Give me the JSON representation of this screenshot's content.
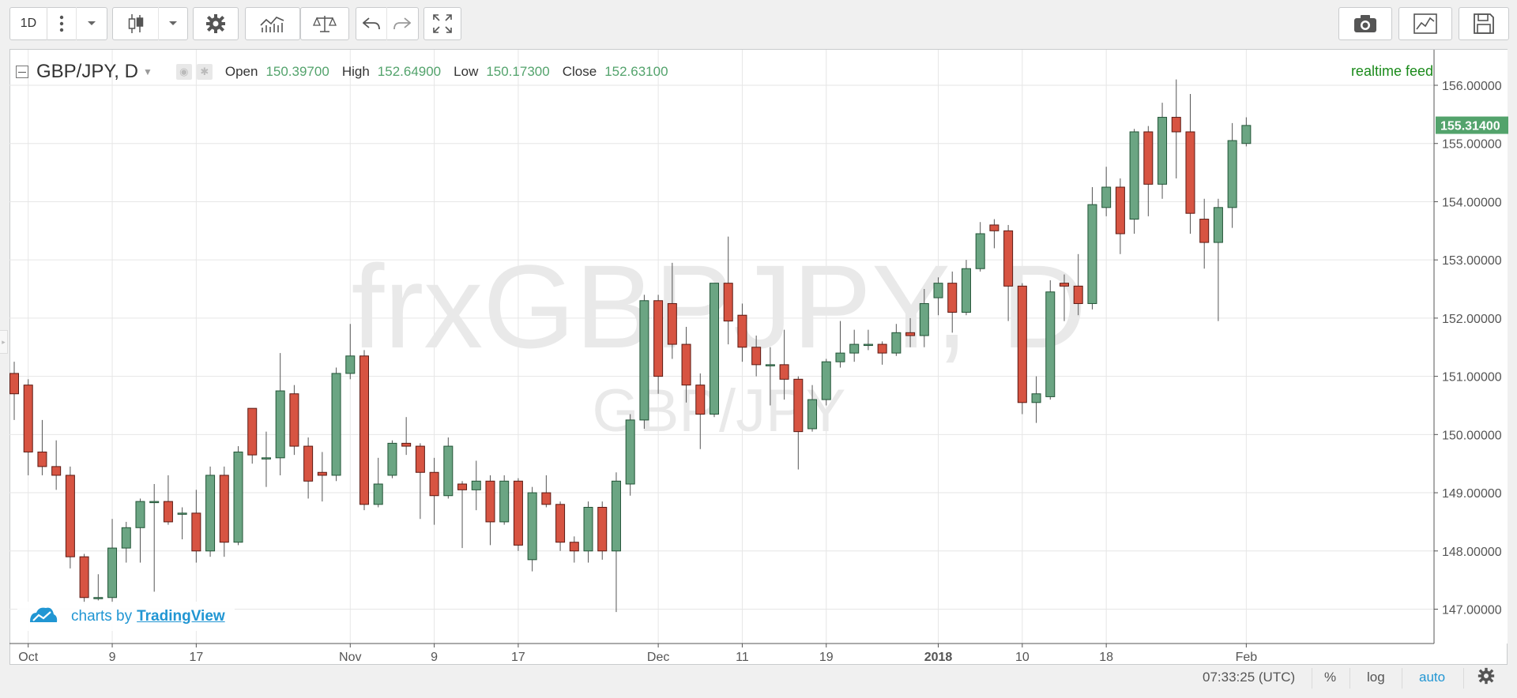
{
  "toolbar": {
    "interval": "1D",
    "icons": [
      "more-vertical-icon",
      "chevron-down-icon",
      "candlestick-icon",
      "chevron-down-icon",
      "gear-icon",
      "indicators-icon",
      "compare-icon",
      "undo-icon",
      "redo-icon",
      "fullscreen-icon",
      "camera-icon",
      "chart-type-icon",
      "save-icon"
    ]
  },
  "legend": {
    "symbol": "GBP/JPY, D",
    "open_label": "Open",
    "open_value": "150.39700",
    "high_label": "High",
    "high_value": "152.64900",
    "low_label": "Low",
    "low_value": "150.17300",
    "close_label": "Close",
    "close_value": "152.63100"
  },
  "realtime_label": "realtime feed",
  "watermark": {
    "main": "frxGBPJPY, D",
    "sub": "GBP/JPY"
  },
  "branding": {
    "prefix": "charts by",
    "name": "TradingView"
  },
  "status": {
    "time": "07:33:25 (UTC)",
    "percent": "%",
    "log": "log",
    "auto": "auto"
  },
  "colors": {
    "up": "#6ba583",
    "down": "#d75442",
    "up_border": "#225437",
    "down_border": "#5b1a13",
    "accent": "#53a36c",
    "link": "#2196d3"
  },
  "chart_data": {
    "type": "candlestick",
    "title": "GBP/JPY, D",
    "ylim": [
      146.6,
      156.4
    ],
    "yticks": [
      "147.00000",
      "148.00000",
      "149.00000",
      "150.00000",
      "151.00000",
      "152.00000",
      "153.00000",
      "154.00000",
      "155.00000",
      "156.00000"
    ],
    "last_price": "155.31400",
    "xticks": [
      {
        "label": "Oct",
        "index": 1,
        "bold": false
      },
      {
        "label": "9",
        "index": 7,
        "bold": false
      },
      {
        "label": "17",
        "index": 13,
        "bold": false
      },
      {
        "label": "Nov",
        "index": 24,
        "bold": false
      },
      {
        "label": "9",
        "index": 30,
        "bold": false
      },
      {
        "label": "17",
        "index": 36,
        "bold": false
      },
      {
        "label": "Dec",
        "index": 46,
        "bold": false
      },
      {
        "label": "11",
        "index": 52,
        "bold": false
      },
      {
        "label": "19",
        "index": 58,
        "bold": false
      },
      {
        "label": "2018",
        "index": 66,
        "bold": true
      },
      {
        "label": "10",
        "index": 72,
        "bold": false
      },
      {
        "label": "18",
        "index": 78,
        "bold": false
      },
      {
        "label": "Feb",
        "index": 88,
        "bold": false
      }
    ],
    "candles": [
      {
        "o": 151.05,
        "h": 151.25,
        "l": 150.25,
        "c": 150.7
      },
      {
        "o": 150.85,
        "h": 150.95,
        "l": 149.3,
        "c": 149.7
      },
      {
        "o": 149.7,
        "h": 150.25,
        "l": 149.3,
        "c": 149.45
      },
      {
        "o": 149.45,
        "h": 149.9,
        "l": 149.05,
        "c": 149.3
      },
      {
        "o": 149.3,
        "h": 149.45,
        "l": 147.7,
        "c": 147.9
      },
      {
        "o": 147.9,
        "h": 147.95,
        "l": 147.1,
        "c": 147.2
      },
      {
        "o": 147.2,
        "h": 147.6,
        "l": 147.15,
        "c": 147.2
      },
      {
        "o": 147.2,
        "h": 148.55,
        "l": 147.1,
        "c": 148.05
      },
      {
        "o": 148.05,
        "h": 148.5,
        "l": 147.8,
        "c": 148.4
      },
      {
        "o": 148.4,
        "h": 148.9,
        "l": 147.8,
        "c": 148.85
      },
      {
        "o": 148.85,
        "h": 149.15,
        "l": 147.3,
        "c": 148.85
      },
      {
        "o": 148.85,
        "h": 149.3,
        "l": 148.45,
        "c": 148.5
      },
      {
        "o": 148.65,
        "h": 148.75,
        "l": 148.2,
        "c": 148.65
      },
      {
        "o": 148.65,
        "h": 149.05,
        "l": 147.8,
        "c": 148.0
      },
      {
        "o": 148.0,
        "h": 149.45,
        "l": 147.9,
        "c": 149.3
      },
      {
        "o": 149.3,
        "h": 149.45,
        "l": 147.9,
        "c": 148.15
      },
      {
        "o": 148.15,
        "h": 149.8,
        "l": 148.1,
        "c": 149.7
      },
      {
        "o": 150.45,
        "h": 150.45,
        "l": 149.5,
        "c": 149.65
      },
      {
        "o": 149.6,
        "h": 150.05,
        "l": 149.1,
        "c": 149.6
      },
      {
        "o": 149.6,
        "h": 151.4,
        "l": 149.3,
        "c": 150.75
      },
      {
        "o": 150.7,
        "h": 150.85,
        "l": 149.65,
        "c": 149.8
      },
      {
        "o": 149.8,
        "h": 149.95,
        "l": 148.9,
        "c": 149.2
      },
      {
        "o": 149.35,
        "h": 149.7,
        "l": 148.85,
        "c": 149.3
      },
      {
        "o": 149.3,
        "h": 151.15,
        "l": 149.2,
        "c": 151.05
      },
      {
        "o": 151.05,
        "h": 151.9,
        "l": 150.95,
        "c": 151.35
      },
      {
        "o": 151.35,
        "h": 151.45,
        "l": 148.7,
        "c": 148.8
      },
      {
        "o": 148.8,
        "h": 149.6,
        "l": 148.75,
        "c": 149.15
      },
      {
        "o": 149.3,
        "h": 149.9,
        "l": 149.25,
        "c": 149.85
      },
      {
        "o": 149.85,
        "h": 150.3,
        "l": 149.65,
        "c": 149.8
      },
      {
        "o": 149.8,
        "h": 149.85,
        "l": 148.55,
        "c": 149.35
      },
      {
        "o": 149.35,
        "h": 149.6,
        "l": 148.45,
        "c": 148.95
      },
      {
        "o": 148.95,
        "h": 149.95,
        "l": 148.9,
        "c": 149.8
      },
      {
        "o": 149.15,
        "h": 149.2,
        "l": 148.05,
        "c": 149.05
      },
      {
        "o": 149.05,
        "h": 149.55,
        "l": 148.7,
        "c": 149.2
      },
      {
        "o": 149.2,
        "h": 149.3,
        "l": 148.1,
        "c": 148.5
      },
      {
        "o": 148.5,
        "h": 149.3,
        "l": 148.45,
        "c": 149.2
      },
      {
        "o": 149.2,
        "h": 149.25,
        "l": 148.0,
        "c": 148.1
      },
      {
        "o": 147.85,
        "h": 149.1,
        "l": 147.65,
        "c": 149.0
      },
      {
        "o": 149.0,
        "h": 149.3,
        "l": 148.75,
        "c": 148.8
      },
      {
        "o": 148.8,
        "h": 148.85,
        "l": 148.0,
        "c": 148.15
      },
      {
        "o": 148.15,
        "h": 148.25,
        "l": 147.8,
        "c": 148.0
      },
      {
        "o": 148.0,
        "h": 148.85,
        "l": 147.8,
        "c": 148.75
      },
      {
        "o": 148.75,
        "h": 148.85,
        "l": 147.85,
        "c": 148.0
      },
      {
        "o": 148.0,
        "h": 149.35,
        "l": 146.95,
        "c": 149.2
      },
      {
        "o": 149.15,
        "h": 150.35,
        "l": 148.95,
        "c": 150.25
      },
      {
        "o": 150.25,
        "h": 152.4,
        "l": 150.1,
        "c": 152.3
      },
      {
        "o": 152.3,
        "h": 152.4,
        "l": 150.7,
        "c": 151.0
      },
      {
        "o": 152.25,
        "h": 152.95,
        "l": 151.3,
        "c": 151.55
      },
      {
        "o": 151.55,
        "h": 151.85,
        "l": 150.55,
        "c": 150.85
      },
      {
        "o": 150.85,
        "h": 151.05,
        "l": 149.75,
        "c": 150.35
      },
      {
        "o": 150.35,
        "h": 152.6,
        "l": 150.3,
        "c": 152.6
      },
      {
        "o": 152.6,
        "h": 153.4,
        "l": 151.55,
        "c": 151.95
      },
      {
        "o": 152.05,
        "h": 152.25,
        "l": 151.25,
        "c": 151.5
      },
      {
        "o": 151.5,
        "h": 151.7,
        "l": 151.0,
        "c": 151.2
      },
      {
        "o": 151.2,
        "h": 151.5,
        "l": 150.5,
        "c": 151.2
      },
      {
        "o": 151.2,
        "h": 151.8,
        "l": 150.6,
        "c": 150.95
      },
      {
        "o": 150.95,
        "h": 151.0,
        "l": 149.4,
        "c": 150.05
      },
      {
        "o": 150.1,
        "h": 150.85,
        "l": 150.05,
        "c": 150.6
      },
      {
        "o": 150.6,
        "h": 151.3,
        "l": 150.5,
        "c": 151.25
      },
      {
        "o": 151.25,
        "h": 151.95,
        "l": 151.15,
        "c": 151.4
      },
      {
        "o": 151.4,
        "h": 151.8,
        "l": 151.25,
        "c": 151.55
      },
      {
        "o": 151.55,
        "h": 151.8,
        "l": 151.45,
        "c": 151.55
      },
      {
        "o": 151.55,
        "h": 151.6,
        "l": 151.2,
        "c": 151.4
      },
      {
        "o": 151.4,
        "h": 151.9,
        "l": 151.35,
        "c": 151.75
      },
      {
        "o": 151.75,
        "h": 152.0,
        "l": 151.5,
        "c": 151.7
      },
      {
        "o": 151.7,
        "h": 152.5,
        "l": 151.5,
        "c": 152.25
      },
      {
        "o": 152.35,
        "h": 152.7,
        "l": 152.05,
        "c": 152.6
      },
      {
        "o": 152.6,
        "h": 152.8,
        "l": 151.75,
        "c": 152.1
      },
      {
        "o": 152.1,
        "h": 153.0,
        "l": 152.05,
        "c": 152.85
      },
      {
        "o": 152.85,
        "h": 153.65,
        "l": 152.8,
        "c": 153.45
      },
      {
        "o": 153.6,
        "h": 153.7,
        "l": 153.2,
        "c": 153.5
      },
      {
        "o": 153.5,
        "h": 153.6,
        "l": 151.95,
        "c": 152.55
      },
      {
        "o": 152.55,
        "h": 152.6,
        "l": 150.35,
        "c": 150.55
      },
      {
        "o": 150.55,
        "h": 151.0,
        "l": 150.2,
        "c": 150.7
      },
      {
        "o": 150.65,
        "h": 152.65,
        "l": 150.6,
        "c": 152.45
      },
      {
        "o": 152.6,
        "h": 152.75,
        "l": 151.95,
        "c": 152.55
      },
      {
        "o": 152.55,
        "h": 153.1,
        "l": 152.05,
        "c": 152.25
      },
      {
        "o": 152.25,
        "h": 154.25,
        "l": 152.15,
        "c": 153.95
      },
      {
        "o": 153.9,
        "h": 154.6,
        "l": 153.75,
        "c": 154.25
      },
      {
        "o": 154.25,
        "h": 154.4,
        "l": 153.1,
        "c": 153.45
      },
      {
        "o": 153.7,
        "h": 155.25,
        "l": 153.45,
        "c": 155.2
      },
      {
        "o": 155.2,
        "h": 155.3,
        "l": 153.75,
        "c": 154.3
      },
      {
        "o": 154.3,
        "h": 155.7,
        "l": 154.05,
        "c": 155.45
      },
      {
        "o": 155.45,
        "h": 156.1,
        "l": 154.4,
        "c": 155.2
      },
      {
        "o": 155.2,
        "h": 155.85,
        "l": 153.45,
        "c": 153.8
      },
      {
        "o": 153.7,
        "h": 154.05,
        "l": 152.85,
        "c": 153.3
      },
      {
        "o": 153.3,
        "h": 154.05,
        "l": 151.95,
        "c": 153.9
      },
      {
        "o": 153.9,
        "h": 155.35,
        "l": 153.55,
        "c": 155.05
      },
      {
        "o": 155.0,
        "h": 155.45,
        "l": 154.95,
        "c": 155.31
      }
    ]
  }
}
